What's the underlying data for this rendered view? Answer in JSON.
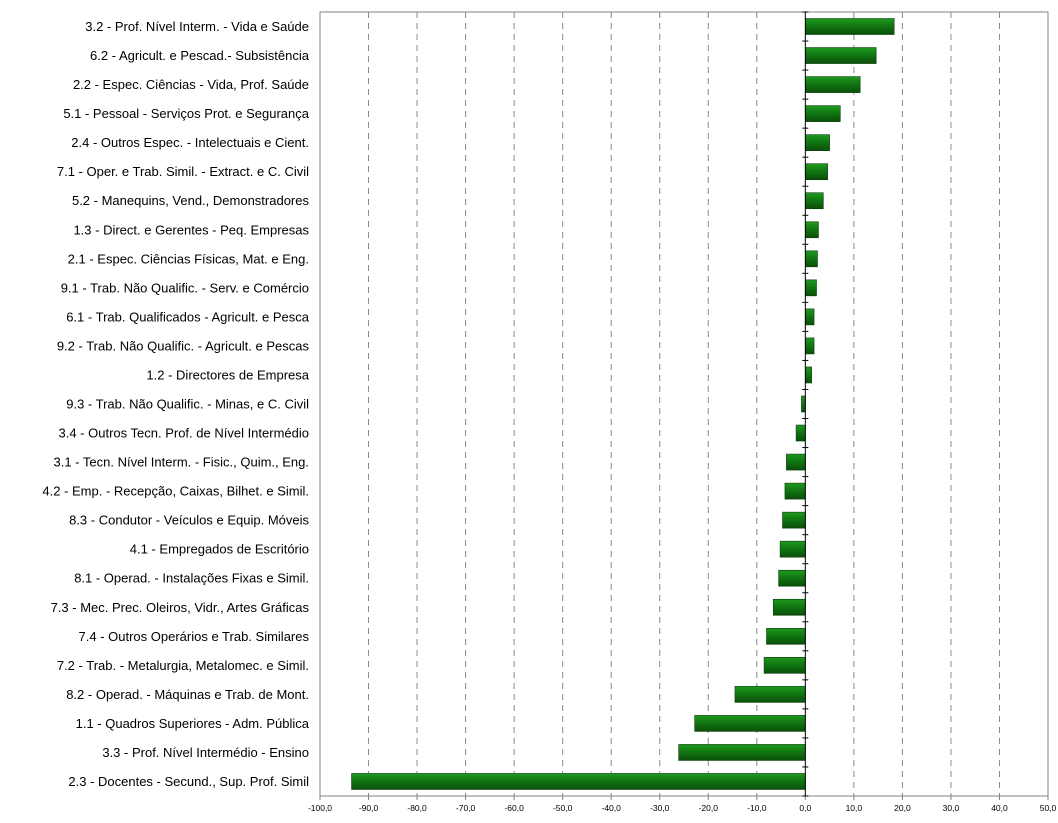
{
  "chart_data": {
    "type": "bar",
    "orientation": "horizontal",
    "title": "",
    "xlabel": "",
    "ylabel": "",
    "xlim": [
      -100,
      50
    ],
    "grid": "vertical dashed",
    "legend": "none",
    "bar_color": "#117711",
    "categories": [
      "3.2 - Prof. Nível Interm. - Vida e Saúde",
      "6.2 - Agricult. e Pescad.- Subsistência",
      "2.2 - Espec. Ciências - Vida, Prof. Saúde",
      "5.1 - Pessoal - Serviços Prot. e Segurança",
      "2.4 - Outros Espec. - Intelectuais e Cient.",
      "7.1 - Oper. e Trab. Simil. - Extract. e C. Civil",
      "5.2 - Manequins, Vend., Demonstradores",
      "1.3 - Direct. e Gerentes - Peq. Empresas",
      "2.1 - Espec. Ciências Físicas, Mat. e Eng.",
      "9.1 - Trab. Não Qualific. - Serv. e Comércio",
      "6.1 - Trab. Qualificados - Agricult. e Pesca",
      "9.2 - Trab. Não Qualific. - Agricult. e Pescas",
      "1.2 - Directores de Empresa",
      "9.3 - Trab. Não Qualific. - Minas, e C. Civil",
      "3.4 - Outros Tecn. Prof. de Nível Intermédio",
      "3.1 - Tecn. Nível Interm. - Fisic., Quim., Eng.",
      "4.2 - Emp. - Recepção, Caixas, Bilhet. e Simil.",
      "8.3 - Condutor - Veículos e Equip. Móveis",
      "4.1 - Empregados de Escritório",
      "8.1 - Operad. - Instalações Fixas e Simil.",
      "7.3 - Mec. Prec. Oleiros, Vidr., Artes Gráficas",
      "7.4 - Outros Operários e Trab. Similares",
      "7.2 - Trab. - Metalurgia, Metalomec. e Simil.",
      "8.2 - Operad. - Máquinas e Trab. de Mont.",
      "1.1 - Quadros Superiores - Adm. Pública",
      "3.3 - Prof. Nível Intermédio - Ensino",
      "2.3 - Docentes - Secund., Sup. Prof. Simil"
    ],
    "values": [
      18.3,
      14.6,
      11.3,
      7.2,
      5.0,
      4.6,
      3.7,
      2.7,
      2.5,
      2.3,
      1.8,
      1.8,
      1.3,
      -0.8,
      -1.9,
      -3.9,
      -4.2,
      -4.7,
      -5.2,
      -5.5,
      -6.6,
      -8.0,
      -8.5,
      -14.5,
      -22.8,
      -26.1,
      -93.5
    ],
    "tick_labels": [
      "-100,0",
      "-90,0",
      "-80,0",
      "-70,0",
      "-60,0",
      "-50,0",
      "-40,0",
      "-30,0",
      "-20,0",
      "-10,0",
      "0,0",
      "10,0",
      "20,0",
      "30,0",
      "40,0",
      "50,0"
    ]
  }
}
